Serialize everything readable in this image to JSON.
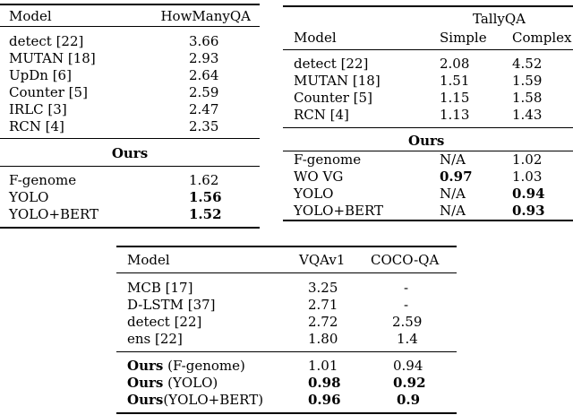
{
  "howmany": {
    "header": {
      "model": "Model",
      "metric": "HowManyQA"
    },
    "rows_a": [
      {
        "model": "detect [22]",
        "value": "3.66"
      },
      {
        "model": "MUTAN [18]",
        "value": "2.93"
      },
      {
        "model": "UpDn [6]",
        "value": "2.64"
      },
      {
        "model": "Counter [5]",
        "value": "2.59"
      },
      {
        "model": "IRLC [3]",
        "value": "2.47"
      },
      {
        "model": "RCN [4]",
        "value": "2.35"
      }
    ],
    "ours_label": "Ours",
    "rows_b": [
      {
        "model": "F-genome",
        "value": "1.62"
      },
      {
        "model": "YOLO",
        "value": "1.56"
      },
      {
        "model": "YOLO+BERT",
        "value": "1.52"
      }
    ]
  },
  "tally": {
    "header": {
      "group": "TallyQA",
      "model": "Model",
      "simple": "Simple",
      "complex": "Complex"
    },
    "rows_a": [
      {
        "model": "detect [22]",
        "simple": "2.08",
        "complex": "4.52"
      },
      {
        "model": "MUTAN [18]",
        "simple": "1.51",
        "complex": "1.59"
      },
      {
        "model": "Counter [5]",
        "simple": "1.15",
        "complex": "1.58"
      },
      {
        "model": "RCN [4]",
        "simple": "1.13",
        "complex": "1.43"
      }
    ],
    "ours_label": "Ours",
    "rows_b": [
      {
        "model": "F-genome",
        "simple": "N/A",
        "complex": "1.02"
      },
      {
        "model": "WO VG",
        "simple": "0.97",
        "complex": "1.03"
      },
      {
        "model": "YOLO",
        "simple": "N/A",
        "complex": "0.94"
      },
      {
        "model": "YOLO+BERT",
        "simple": "N/A",
        "complex": "0.93"
      }
    ]
  },
  "vqa": {
    "header": {
      "model": "Model",
      "vqa": "VQAv1",
      "coco": "COCO-QA"
    },
    "rows_a": [
      {
        "model": "MCB [17]",
        "vqa": "3.25",
        "coco": "-"
      },
      {
        "model": "D-LSTM [37]",
        "vqa": "2.71",
        "coco": "-"
      },
      {
        "model": "detect [22]",
        "vqa": "2.72",
        "coco": "2.59"
      },
      {
        "model": "ens [22]",
        "vqa": "1.80",
        "coco": "1.4"
      }
    ],
    "rows_b": [
      {
        "ours": "Ours",
        "variant": " (F-genome)",
        "vqa": "1.01",
        "coco": "0.94"
      },
      {
        "ours": "Ours",
        "variant": " (YOLO)",
        "vqa": "0.98",
        "coco": "0.92"
      },
      {
        "ours": "Ours",
        "variant": "(YOLO+BERT)",
        "vqa": "0.96",
        "coco": "0.9"
      }
    ]
  }
}
